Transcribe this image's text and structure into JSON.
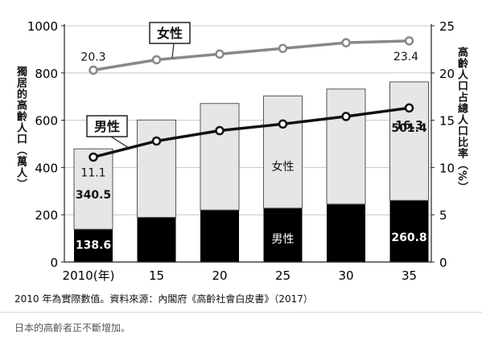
{
  "chart_data": {
    "type": "bar",
    "subtype": "stacked-bar-with-lines",
    "categories": [
      "2010(年)",
      "15",
      "20",
      "25",
      "30",
      "35"
    ],
    "series": [
      {
        "name": "男性",
        "kind": "bar",
        "color": "#000000",
        "values": [
          138.6,
          189,
          220,
          228,
          245,
          260.8
        ]
      },
      {
        "name": "女性",
        "kind": "bar",
        "color": "#e6e6e6",
        "values": [
          340.5,
          412,
          451,
          475,
          487,
          501.4
        ]
      },
      {
        "name": "男性",
        "kind": "line",
        "axis": "right",
        "color": "#111111",
        "values": [
          11.1,
          12.8,
          13.9,
          14.6,
          15.4,
          16.3
        ]
      },
      {
        "name": "女性",
        "kind": "line",
        "axis": "right",
        "color": "#888888",
        "values": [
          20.3,
          21.4,
          22.0,
          22.6,
          23.2,
          23.4
        ]
      }
    ],
    "bar_labels": [
      {
        "series": "男性",
        "category": "2010(年)",
        "text": "138.6"
      },
      {
        "series": "女性",
        "category": "2010(年)",
        "text": "340.5"
      },
      {
        "series": "男性",
        "category": "35",
        "text": "260.8"
      },
      {
        "series": "女性",
        "category": "35",
        "text": "501.4"
      }
    ],
    "line_labels": [
      {
        "series": "男性",
        "category": "2010(年)",
        "text": "11.1"
      },
      {
        "series": "男性",
        "category": "35",
        "text": "16.3"
      },
      {
        "series": "女性",
        "category": "2010(年)",
        "text": "20.3"
      },
      {
        "series": "女性",
        "category": "35",
        "text": "23.4"
      }
    ],
    "bar_series_labels": {
      "male": "男性",
      "female": "女性"
    },
    "line_callouts": {
      "male": "男性",
      "female": "女性"
    },
    "ylabel": "獨居的高齡人口（萬人）",
    "ylabel_right": "高齡人口占總人口比率（%）",
    "ylim": [
      0,
      1000
    ],
    "yticks": [
      0,
      200,
      400,
      600,
      800,
      1000
    ],
    "ylim_right": [
      0,
      25
    ],
    "yticks_right": [
      0,
      5,
      10,
      15,
      20,
      25
    ],
    "grid": true
  },
  "source_note": "2010 年為實際數值。資料來源：內閣府《高齡社會白皮書》（2017）",
  "caption": "日本的高齡者正不斷增加。"
}
